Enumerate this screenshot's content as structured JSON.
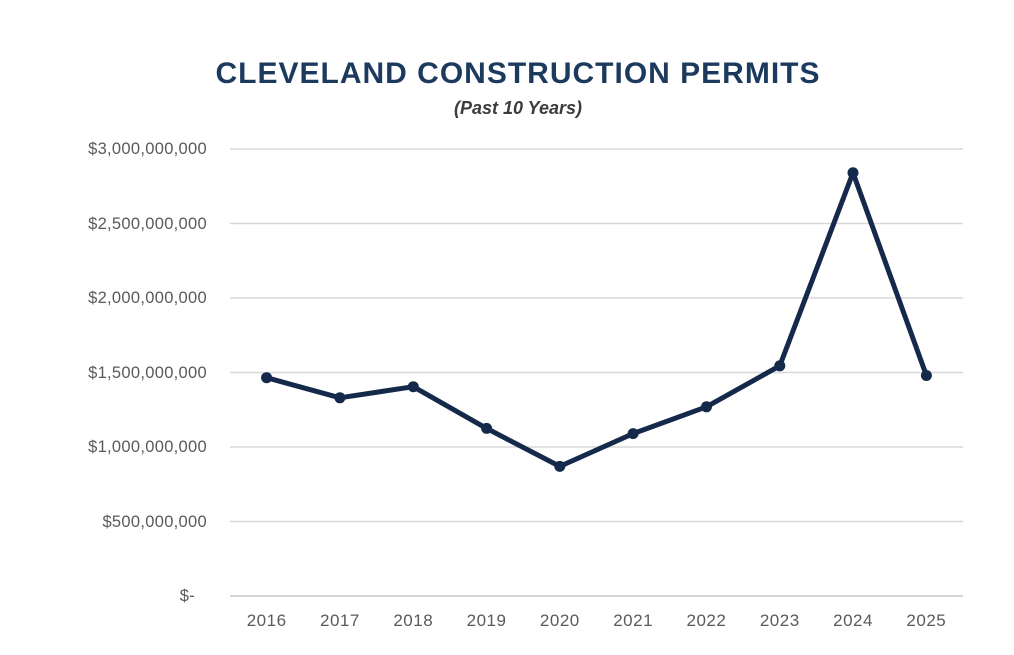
{
  "page": {
    "background_color": "#ffffff"
  },
  "header": {
    "title": "CLEVELAND CONSTRUCTION PERMITS",
    "subtitle": "(Past 10 Years)"
  },
  "colors": {
    "title": "#1b3a5e",
    "subtitle": "#3c3c3c",
    "line": "#15294a",
    "marker": "#15294a",
    "gridline": "#d8d8d8",
    "baseline": "#c6c6c6",
    "axis_text": "#5a5a5a"
  },
  "chart_data": {
    "type": "line",
    "title": "CLEVELAND CONSTRUCTION PERMITS",
    "subtitle": "(Past 10 Years)",
    "categories": [
      "2016",
      "2017",
      "2018",
      "2019",
      "2020",
      "2021",
      "2022",
      "2023",
      "2024",
      "2025"
    ],
    "values": [
      1465000000,
      1330000000,
      1405000000,
      1125000000,
      870000000,
      1090000000,
      1270000000,
      1545000000,
      2840000000,
      1480000000
    ],
    "y_tick_labels": [
      "$3,000,000,000",
      "$2,500,000,000",
      "$2,000,000,000",
      "$1,500,000,000",
      "$1,000,000,000",
      "$500,000,000",
      "$-"
    ],
    "y_tick_values": [
      3000000000,
      2500000000,
      2000000000,
      1500000000,
      1000000000,
      500000000,
      0
    ],
    "ylim": [
      0,
      3000000000
    ],
    "xlabel": "",
    "ylabel": "",
    "grid": "horizontal-only",
    "legend": "none",
    "markers": true
  }
}
